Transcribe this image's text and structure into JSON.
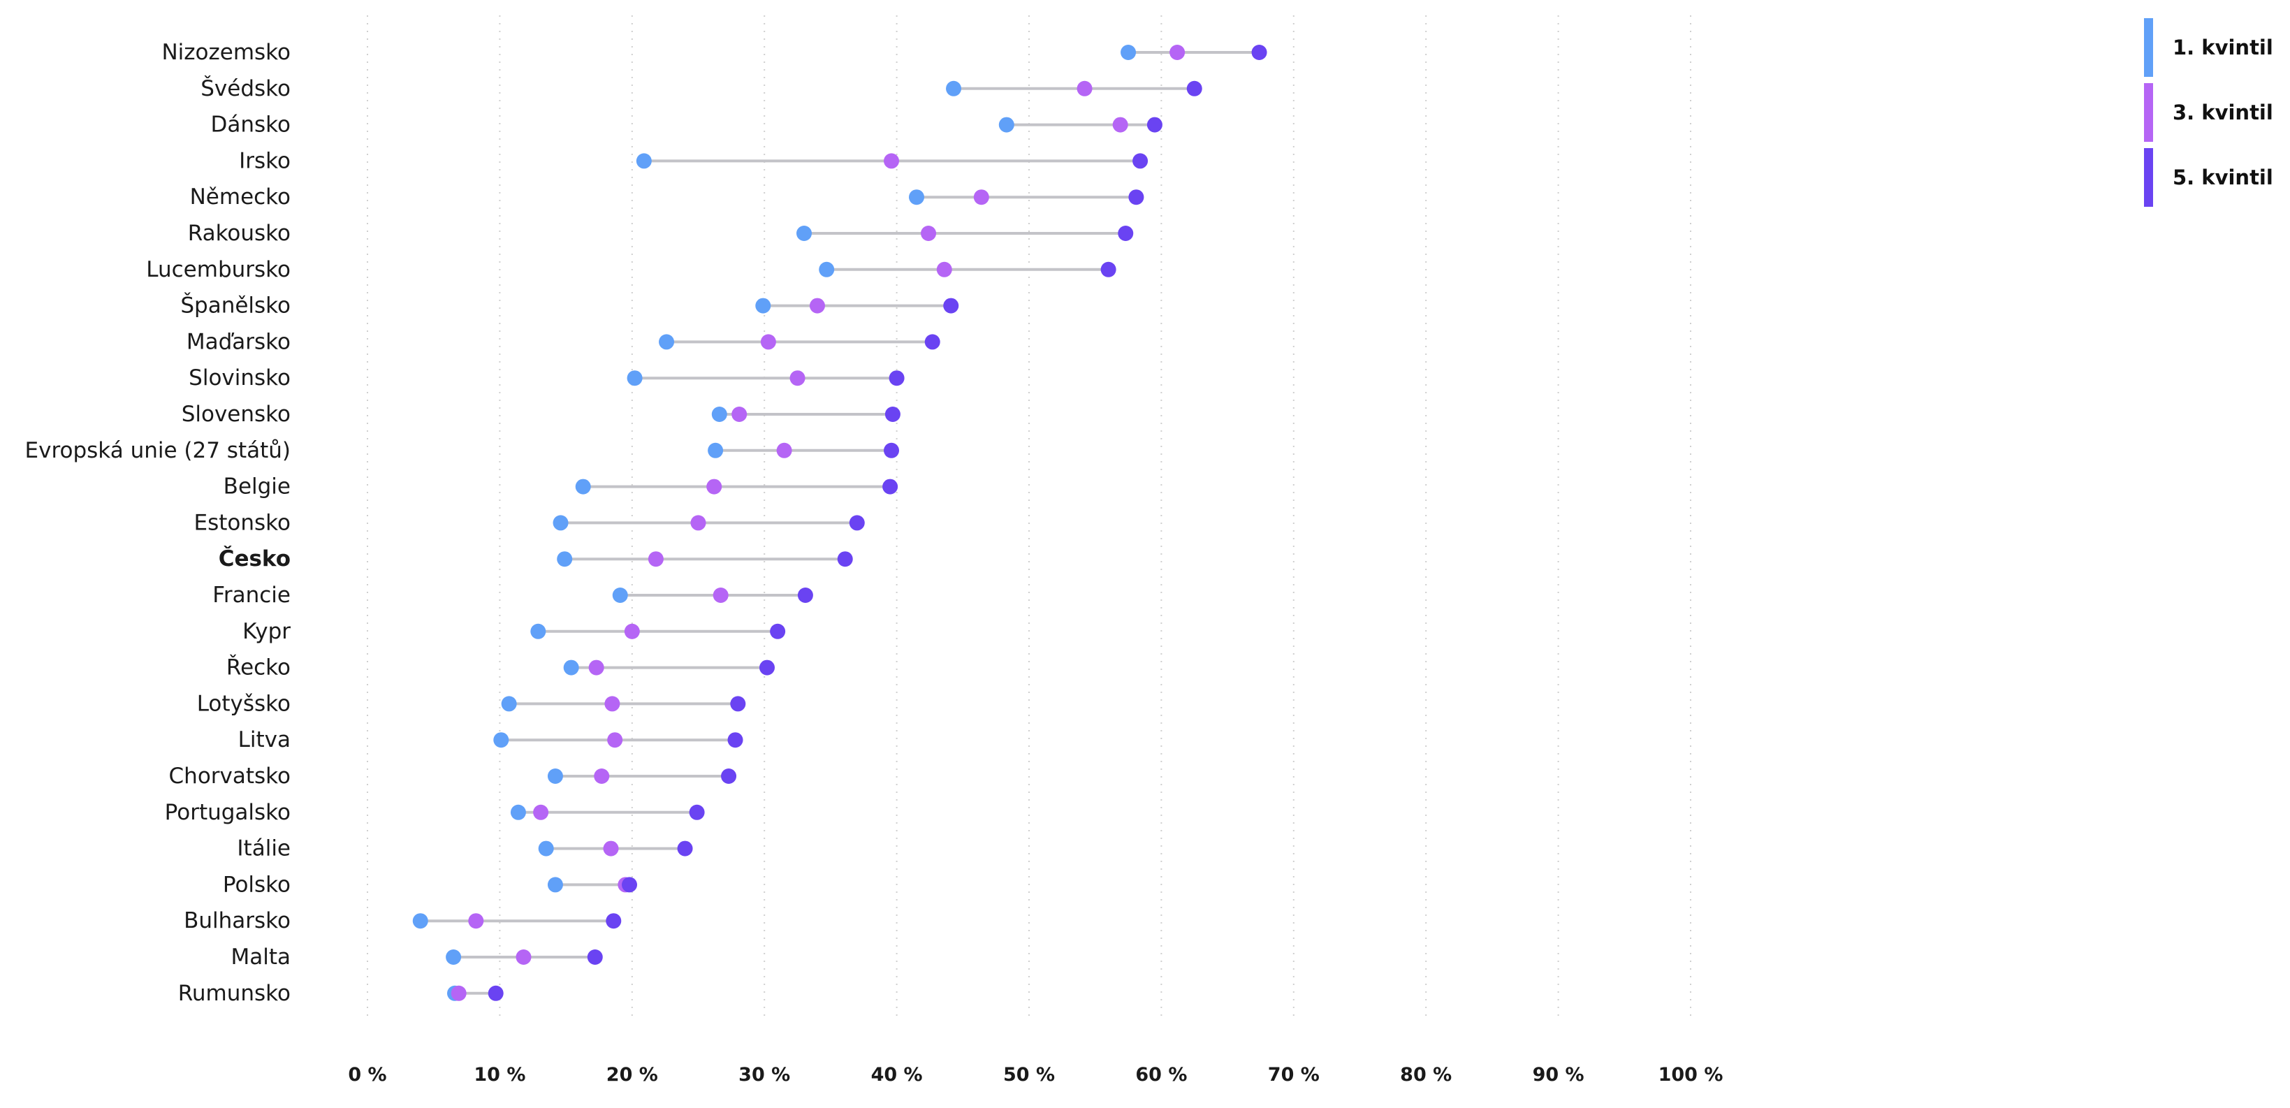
{
  "chart_data": {
    "type": "dumbbell",
    "title": "",
    "xlabel": "",
    "ylabel": "",
    "xlim": [
      0,
      100
    ],
    "x_ticks": [
      {
        "value": 0,
        "label": "0 %"
      },
      {
        "value": 10,
        "label": "10 %"
      },
      {
        "value": 20,
        "label": "20 %"
      },
      {
        "value": 30,
        "label": "30 %"
      },
      {
        "value": 40,
        "label": "40 %"
      },
      {
        "value": 50,
        "label": "50 %"
      },
      {
        "value": 60,
        "label": "60 %"
      },
      {
        "value": 70,
        "label": "70 %"
      },
      {
        "value": 80,
        "label": "80 %"
      },
      {
        "value": 90,
        "label": "90 %"
      },
      {
        "value": 100,
        "label": "100 %"
      }
    ],
    "grid": "vertical dotted",
    "legend_position": "top-right",
    "highlighted_category": "Česko",
    "series": [
      {
        "name": "1. kvintil",
        "color": "#60A0F8"
      },
      {
        "name": "3. kvintil",
        "color": "#B565F5"
      },
      {
        "name": "5. kvintil",
        "color": "#6A43F2"
      }
    ],
    "categories": [
      "Nizozemsko",
      "Švédsko",
      "Dánsko",
      "Irsko",
      "Německo",
      "Rakousko",
      "Lucembursko",
      "Španělsko",
      "Maďarsko",
      "Slovinsko",
      "Slovensko",
      "Evropská unie (27 států)",
      "Belgie",
      "Estonsko",
      "Česko",
      "Francie",
      "Kypr",
      "Řecko",
      "Lotyšsko",
      "Litva",
      "Chorvatsko",
      "Portugalsko",
      "Itálie",
      "Polsko",
      "Bulharsko",
      "Malta",
      "Rumunsko"
    ],
    "values": [
      [
        57.5,
        61.2,
        67.4
      ],
      [
        44.3,
        54.2,
        62.5
      ],
      [
        48.3,
        56.9,
        59.5
      ],
      [
        20.9,
        39.6,
        58.4
      ],
      [
        41.5,
        46.4,
        58.1
      ],
      [
        33.0,
        42.4,
        57.3
      ],
      [
        34.7,
        43.6,
        56.0
      ],
      [
        29.9,
        34.0,
        44.1
      ],
      [
        22.6,
        30.3,
        42.7
      ],
      [
        20.2,
        32.5,
        40.0
      ],
      [
        26.6,
        28.1,
        39.7
      ],
      [
        26.3,
        31.5,
        39.6
      ],
      [
        16.3,
        26.2,
        39.5
      ],
      [
        14.6,
        25.0,
        37.0
      ],
      [
        14.9,
        21.8,
        36.1
      ],
      [
        19.1,
        26.7,
        33.1
      ],
      [
        12.9,
        20.0,
        31.0
      ],
      [
        15.4,
        17.3,
        30.2
      ],
      [
        10.7,
        18.5,
        28.0
      ],
      [
        10.1,
        18.7,
        27.8
      ],
      [
        14.2,
        17.7,
        27.3
      ],
      [
        11.4,
        13.1,
        24.9
      ],
      [
        13.5,
        18.4,
        24.0
      ],
      [
        14.2,
        19.5,
        19.8
      ],
      [
        4.0,
        8.2,
        18.6
      ],
      [
        6.5,
        11.8,
        17.2
      ],
      [
        6.6,
        6.9,
        9.7
      ]
    ]
  }
}
